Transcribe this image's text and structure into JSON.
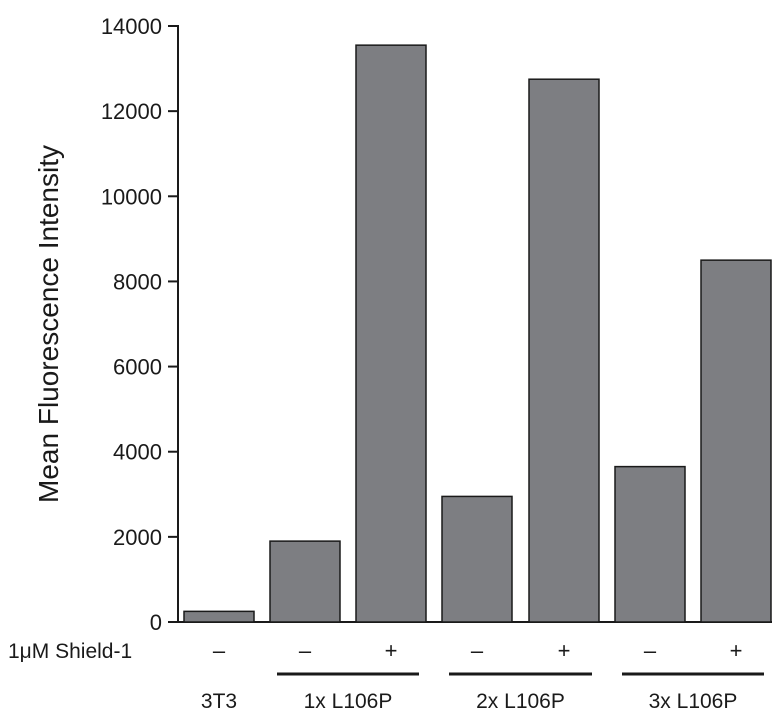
{
  "chart_data": {
    "type": "bar",
    "ylabel": "Mean Fluorescence Intensity",
    "ylim": [
      0,
      14000
    ],
    "yticks": [
      "0",
      "2000",
      "4000",
      "6000",
      "8000",
      "10000",
      "12000",
      "14000"
    ],
    "treatment_label": "1μM Shield-1",
    "bar_color": "#7d7e82",
    "bars": [
      {
        "sign": "–",
        "value": 250
      },
      {
        "sign": "–",
        "value": 1900
      },
      {
        "sign": "+",
        "value": 13550
      },
      {
        "sign": "–",
        "value": 2950
      },
      {
        "sign": "+",
        "value": 12750
      },
      {
        "sign": "–",
        "value": 3650
      },
      {
        "sign": "+",
        "value": 8500
      }
    ],
    "groups": [
      {
        "label": "3T3",
        "bars": [
          0
        ],
        "underline": false
      },
      {
        "label": "1x L106P",
        "bars": [
          1,
          2
        ],
        "underline": true
      },
      {
        "label": "2x L106P",
        "bars": [
          3,
          4
        ],
        "underline": true
      },
      {
        "label": "3x L106P",
        "bars": [
          5,
          6
        ],
        "underline": true
      }
    ]
  }
}
